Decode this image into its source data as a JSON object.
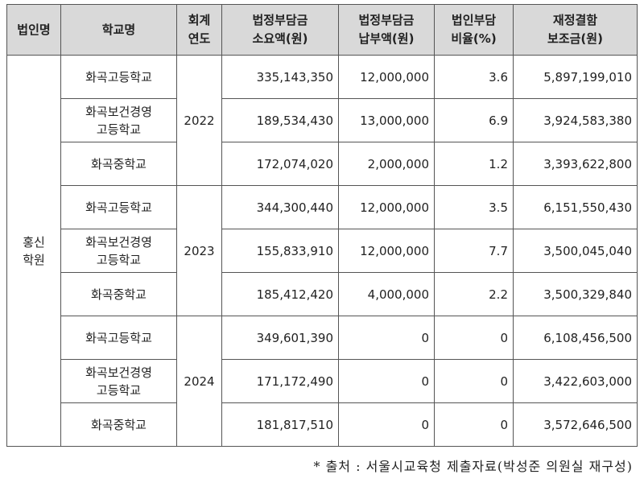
{
  "headers": {
    "corp": "법인명",
    "school": "학교명",
    "year": [
      "회계",
      "연도"
    ],
    "required": [
      "법정부담금",
      "소요액(원)"
    ],
    "paid": [
      "법정부담금",
      "납부액(원)"
    ],
    "ratio": [
      "법인부담",
      "비율(%)"
    ],
    "subsidy": [
      "재정결함",
      "보조금(원)"
    ]
  },
  "corp": [
    "홍신",
    "학원"
  ],
  "years": [
    {
      "year": "2022",
      "rows": [
        {
          "school": [
            "화곡고등학교"
          ],
          "required": "335,143,350",
          "paid": "12,000,000",
          "ratio": "3.6",
          "subsidy": "5,897,199,010"
        },
        {
          "school": [
            "화곡보건경영",
            "고등학교"
          ],
          "required": "189,534,430",
          "paid": "13,000,000",
          "ratio": "6.9",
          "subsidy": "3,924,583,380"
        },
        {
          "school": [
            "화곡중학교"
          ],
          "required": "172,074,020",
          "paid": "2,000,000",
          "ratio": "1.2",
          "subsidy": "3,393,622,800"
        }
      ]
    },
    {
      "year": "2023",
      "rows": [
        {
          "school": [
            "화곡고등학교"
          ],
          "required": "344,300,440",
          "paid": "12,000,000",
          "ratio": "3.5",
          "subsidy": "6,151,550,430"
        },
        {
          "school": [
            "화곡보건경영",
            "고등학교"
          ],
          "required": "155,833,910",
          "paid": "12,000,000",
          "ratio": "7.7",
          "subsidy": "3,500,045,040"
        },
        {
          "school": [
            "화곡중학교"
          ],
          "required": "185,412,420",
          "paid": "4,000,000",
          "ratio": "2.2",
          "subsidy": "3,500,329,840"
        }
      ]
    },
    {
      "year": "2024",
      "rows": [
        {
          "school": [
            "화곡고등학교"
          ],
          "required": "349,601,390",
          "paid": "0",
          "ratio": "0",
          "subsidy": "6,108,456,500"
        },
        {
          "school": [
            "화곡보건경영",
            "고등학교"
          ],
          "required": "171,172,490",
          "paid": "0",
          "ratio": "0",
          "subsidy": "3,422,603,000"
        },
        {
          "school": [
            "화곡중학교"
          ],
          "required": "181,817,510",
          "paid": "0",
          "ratio": "0",
          "subsidy": "3,572,646,500"
        }
      ]
    }
  ],
  "source": "* 출처 : 서울시교육청 제출자료(박성준 의원실 재구성)"
}
